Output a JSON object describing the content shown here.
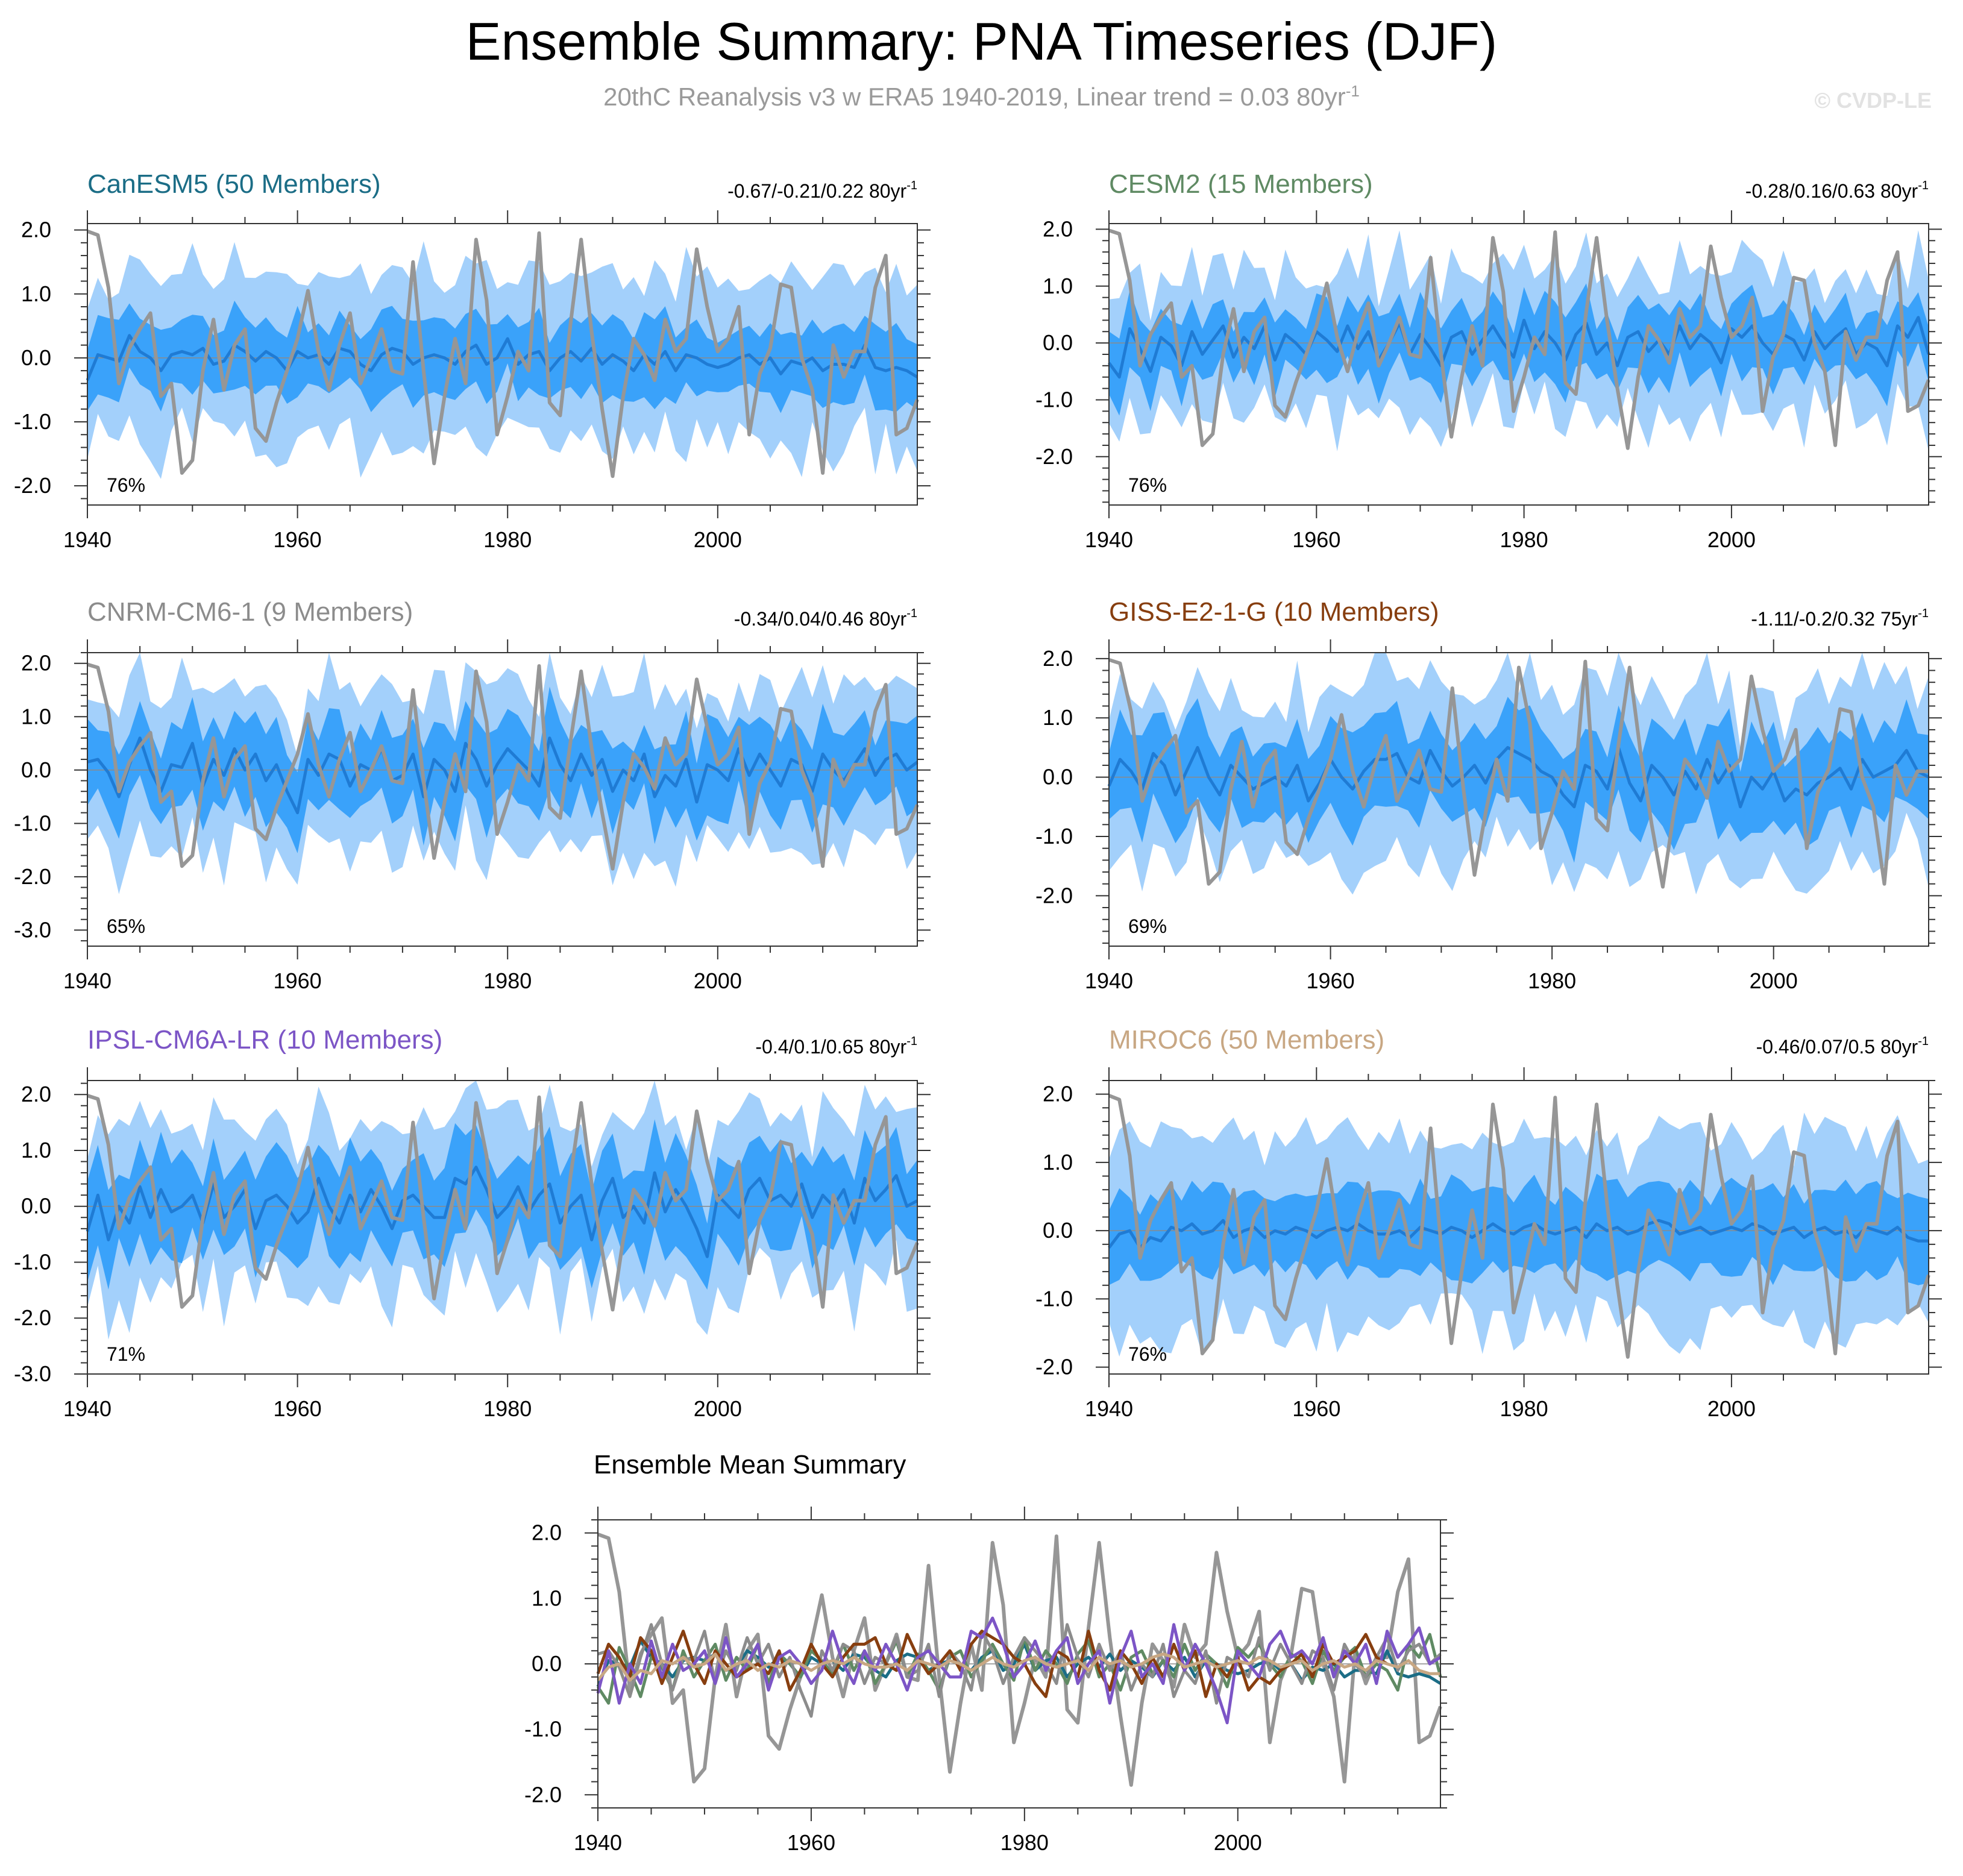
{
  "header": {
    "title": "Ensemble Summary: PNA Timeseries (DJF)",
    "subtitle_main": "20thC Reanalysis v3 w ERA5 1940-2019, Linear trend = 0.03 80yr",
    "subtitle_exp": "-1",
    "watermark": "© CVDP-LE"
  },
  "colors": {
    "band_outer": "#a3d0fb",
    "band_inner": "#3aa2fa",
    "ens_mean": "#1f7bd4",
    "observed": "#969696",
    "zero_line": "#8a8a8a"
  },
  "chart_data": [
    {
      "id": "canesm5",
      "type": "area",
      "title": "CanESM5 (50 Members)",
      "title_color": "#1b6d86",
      "trend_label": "-0.67/-0.21/0.22 80yr",
      "trend_exp": "-1",
      "percent_label": "76%",
      "xlim": [
        1940,
        2019
      ],
      "xticks": [
        1940,
        1960,
        1980,
        2000
      ],
      "ylim": [
        -2.3,
        2.1
      ],
      "yticks": [
        -2.0,
        -1.0,
        0.0,
        1.0,
        2.0
      ],
      "ytick_labels": [
        "-2.0",
        "-1.0",
        "0.0",
        "1.0",
        "2.0"
      ],
      "outer_halfwidth": 1.35,
      "inner_halfwidth": 0.55,
      "seed": 11,
      "ens_mean": [
        -0.35,
        0.05,
        0.0,
        -0.05,
        0.35,
        0.1,
        0.0,
        -0.2,
        0.05,
        0.1,
        0.05,
        0.15,
        -0.1,
        -0.05,
        0.2,
        0.1,
        -0.05,
        0.1,
        0.0,
        -0.2,
        0.1,
        0.0,
        0.05,
        -0.1,
        0.15,
        0.1,
        -0.1,
        -0.2,
        0.05,
        0.15,
        0.1,
        -0.1,
        0.0,
        0.05,
        0.0,
        -0.1,
        0.1,
        0.2,
        -0.1,
        0.0,
        0.3,
        -0.1,
        0.05,
        0.1,
        -0.2,
        0.0,
        0.1,
        -0.05,
        0.15,
        -0.1,
        0.05,
        -0.05,
        -0.2,
        0.05,
        -0.1,
        0.1,
        -0.2,
        0.05,
        0.0,
        -0.1,
        -0.15,
        -0.1,
        0.0,
        0.05,
        -0.1,
        0.0,
        -0.25,
        -0.05,
        -0.1,
        0.0,
        -0.2,
        -0.1,
        -0.1,
        -0.15,
        0.2,
        -0.15,
        -0.2,
        -0.15,
        -0.2,
        -0.3
      ]
    },
    {
      "id": "cesm2",
      "type": "area",
      "title": "CESM2 (15 Members)",
      "title_color": "#5f8a63",
      "trend_label": "-0.28/0.16/0.63 80yr",
      "trend_exp": "-1",
      "percent_label": "76%",
      "xlim": [
        1940,
        2019
      ],
      "xticks": [
        1940,
        1960,
        1980,
        2000
      ],
      "ylim": [
        -2.85,
        2.1
      ],
      "yticks": [
        -2.0,
        -1.0,
        0.0,
        1.0,
        2.0
      ],
      "ytick_labels": [
        "-2.0",
        "-1.0",
        "0.0",
        "1.0",
        "2.0"
      ],
      "outer_halfwidth": 1.25,
      "inner_halfwidth": 0.6,
      "seed": 23,
      "ens_mean": [
        -0.35,
        -0.6,
        0.25,
        -0.1,
        -0.5,
        0.1,
        -0.05,
        -0.4,
        0.2,
        -0.2,
        0.05,
        0.3,
        -0.25,
        0.1,
        -0.1,
        0.3,
        -0.3,
        0.15,
        0.0,
        -0.2,
        0.2,
        0.05,
        -0.15,
        0.3,
        -0.1,
        0.2,
        -0.3,
        0.0,
        0.35,
        -0.2,
        0.15,
        -0.1,
        -0.4,
        0.1,
        0.2,
        -0.2,
        0.05,
        0.3,
        0.0,
        -0.25,
        0.4,
        -0.1,
        0.2,
        0.0,
        -0.3,
        0.15,
        0.35,
        -0.2,
        0.0,
        -0.4,
        0.1,
        0.2,
        -0.15,
        0.05,
        -0.2,
        0.3,
        -0.1,
        0.15,
        0.0,
        -0.35,
        0.25,
        0.1,
        0.3,
        0.0,
        -0.2,
        0.15,
        0.05,
        -0.3,
        0.2,
        -0.1,
        0.1,
        0.25,
        -0.2,
        0.0,
        -0.1,
        -0.4,
        0.3,
        0.1,
        0.45,
        -0.2
      ]
    },
    {
      "id": "cnrm",
      "type": "area",
      "title": "CNRM-CM6-1 (9 Members)",
      "title_color": "#8c8c8c",
      "trend_label": "-0.34/0.04/0.46 80yr",
      "trend_exp": "-1",
      "percent_label": "65%",
      "xlim": [
        1940,
        2019
      ],
      "xticks": [
        1940,
        1960,
        1980,
        2000
      ],
      "ylim": [
        -3.3,
        2.2
      ],
      "yticks": [
        -3.0,
        -2.0,
        -1.0,
        0.0,
        1.0,
        2.0
      ],
      "ytick_labels": [
        "-3.0",
        "-2.0",
        "-1.0",
        "0.0",
        "1.0",
        "2.0"
      ],
      "outer_halfwidth": 1.5,
      "inner_halfwidth": 0.75,
      "seed": 37,
      "ens_mean": [
        0.15,
        0.2,
        -0.05,
        -0.5,
        0.1,
        0.6,
        0.0,
        -0.4,
        0.1,
        0.05,
        0.5,
        -0.3,
        0.2,
        -0.1,
        0.4,
        0.0,
        0.3,
        -0.2,
        0.1,
        -0.4,
        -0.8,
        0.2,
        -0.1,
        0.3,
        0.2,
        -0.3,
        0.1,
        0.0,
        0.4,
        -0.2,
        -0.1,
        0.3,
        -0.5,
        0.2,
        0.0,
        -0.4,
        0.5,
        0.2,
        -0.3,
        0.1,
        0.4,
        0.2,
        0.0,
        -0.3,
        0.6,
        0.1,
        -0.2,
        0.3,
        -0.1,
        0.2,
        -0.4,
        0.0,
        -0.2,
        0.3,
        -0.5,
        -0.1,
        -0.3,
        0.2,
        -0.6,
        0.1,
        0.0,
        -0.2,
        0.4,
        -0.1,
        0.3,
        0.0,
        -0.3,
        0.2,
        0.1,
        -0.4,
        0.3,
        0.0,
        -0.2,
        0.1,
        0.4,
        -0.1,
        0.2,
        0.3,
        0.0,
        0.15
      ]
    },
    {
      "id": "giss",
      "type": "area",
      "title": "GISS-E2-1-G (10 Members)",
      "title_color": "#873e0f",
      "trend_label": "-1.11/-0.2/0.32 75yr",
      "trend_exp": "-1",
      "percent_label": "69%",
      "xlim": [
        1940,
        2014
      ],
      "xticks": [
        1940,
        1960,
        1980,
        2000
      ],
      "ylim": [
        -2.85,
        2.1
      ],
      "yticks": [
        -2.0,
        -1.0,
        0.0,
        1.0,
        2.0
      ],
      "ytick_labels": [
        "-2.0",
        "-1.0",
        "0.0",
        "1.0",
        "2.0"
      ],
      "outer_halfwidth": 1.45,
      "inner_halfwidth": 0.75,
      "seed": 53,
      "ens_mean": [
        -0.15,
        0.3,
        0.1,
        -0.2,
        0.4,
        0.2,
        -0.3,
        0.1,
        0.5,
        0.0,
        -0.3,
        0.2,
        0.0,
        -0.2,
        -0.1,
        0.0,
        -0.15,
        0.2,
        -0.4,
        -0.1,
        0.3,
        0.0,
        -0.2,
        0.1,
        0.3,
        0.3,
        0.4,
        0.0,
        -0.1,
        0.45,
        0.1,
        -0.15,
        0.0,
        0.2,
        -0.1,
        0.3,
        0.5,
        0.4,
        0.3,
        0.1,
        0.0,
        -0.3,
        -0.5,
        0.2,
        0.1,
        -0.2,
        0.5,
        -0.1,
        -0.4,
        0.2,
        0.0,
        -0.3,
        0.1,
        -0.2,
        0.3,
        -0.1,
        0.2,
        -0.5,
        0.0,
        -0.2,
        0.1,
        -0.4,
        -0.2,
        -0.3,
        -0.1,
        0.0,
        0.15,
        -0.2,
        0.3,
        0.0,
        0.1,
        0.2,
        0.45,
        0.1,
        0.0
      ]
    },
    {
      "id": "ipsl",
      "type": "area",
      "title": "IPSL-CM6A-LR (10 Members)",
      "title_color": "#7c55c6",
      "trend_label": "-0.4/0.1/0.65 80yr",
      "trend_exp": "-1",
      "percent_label": "71%",
      "xlim": [
        1940,
        2019
      ],
      "xticks": [
        1940,
        1960,
        1980,
        2000
      ],
      "ylim": [
        -3.0,
        2.25
      ],
      "yticks": [
        -3.0,
        -2.0,
        -1.0,
        0.0,
        1.0,
        2.0
      ],
      "ytick_labels": [
        "-3.0",
        "-2.0",
        "-1.0",
        "0.0",
        "1.0",
        "2.0"
      ],
      "outer_halfwidth": 1.5,
      "inner_halfwidth": 0.8,
      "seed": 71,
      "ens_mean": [
        -0.45,
        0.2,
        -0.6,
        0.0,
        -0.3,
        0.35,
        -0.2,
        0.3,
        -0.1,
        0.0,
        0.2,
        -0.3,
        0.4,
        -0.2,
        0.0,
        0.3,
        -0.4,
        0.1,
        0.2,
        0.0,
        -0.3,
        -0.1,
        0.5,
        0.0,
        -0.3,
        0.2,
        -0.1,
        0.3,
        0.0,
        -0.4,
        0.1,
        0.2,
        0.0,
        -0.2,
        -0.2,
        0.5,
        0.4,
        0.7,
        0.3,
        -0.2,
        0.0,
        0.35,
        -0.1,
        0.2,
        0.4,
        -0.3,
        0.0,
        0.2,
        -0.6,
        0.1,
        0.5,
        -0.2,
        0.0,
        -0.3,
        0.6,
        -0.1,
        0.3,
        0.0,
        -0.4,
        -0.9,
        0.2,
        0.0,
        -0.2,
        0.3,
        0.5,
        0.1,
        0.2,
        0.0,
        0.4,
        -0.2,
        0.2,
        0.0,
        0.3,
        -0.3,
        0.5,
        0.1,
        0.3,
        0.55,
        0.0,
        0.1
      ]
    },
    {
      "id": "miroc6",
      "type": "area",
      "title": "MIROC6 (50 Members)",
      "title_color": "#c8a783",
      "trend_label": "-0.46/0.07/0.5 80yr",
      "trend_exp": "-1",
      "percent_label": "76%",
      "xlim": [
        1940,
        2019
      ],
      "xticks": [
        1940,
        1960,
        1980,
        2000
      ],
      "ylim": [
        -2.1,
        2.2
      ],
      "yticks": [
        -2.0,
        -1.0,
        0.0,
        1.0,
        2.0
      ],
      "ytick_labels": [
        "-2.0",
        "-1.0",
        "0.0",
        "1.0",
        "2.0"
      ],
      "outer_halfwidth": 1.35,
      "inner_halfwidth": 0.6,
      "seed": 89,
      "ens_mean": [
        -0.25,
        -0.05,
        0.0,
        -0.25,
        -0.1,
        -0.15,
        0.05,
        0.0,
        0.1,
        -0.05,
        0.0,
        0.15,
        -0.1,
        0.0,
        0.05,
        -0.1,
        0.0,
        -0.05,
        0.05,
        0.0,
        -0.1,
        0.0,
        0.05,
        0.0,
        0.1,
        0.0,
        -0.05,
        -0.05,
        0.0,
        -0.1,
        0.05,
        0.0,
        -0.05,
        0.05,
        0.0,
        -0.1,
        0.0,
        0.1,
        0.0,
        -0.05,
        0.05,
        0.1,
        0.0,
        -0.05,
        0.0,
        0.05,
        -0.1,
        0.1,
        0.0,
        0.05,
        -0.05,
        0.0,
        0.1,
        0.15,
        0.1,
        -0.05,
        0.0,
        0.05,
        -0.05,
        0.0,
        0.05,
        0.0,
        0.1,
        0.05,
        -0.05,
        0.0,
        0.05,
        -0.1,
        0.0,
        0.05,
        -0.05,
        0.0,
        -0.1,
        0.05,
        0.0,
        -0.05,
        0.05,
        -0.1,
        -0.15,
        -0.15
      ]
    },
    {
      "id": "ensmean",
      "type": "line",
      "title": "Ensemble Mean Summary",
      "title_color": "#000000",
      "xlim": [
        1940,
        2019
      ],
      "xticks": [
        1940,
        1960,
        1980,
        2000
      ],
      "ylim": [
        -2.2,
        2.2
      ],
      "yticks": [
        -2.0,
        -1.0,
        0.0,
        1.0,
        2.0
      ],
      "ytick_labels": [
        "-2.0",
        "-1.0",
        "0.0",
        "1.0",
        "2.0"
      ],
      "series_refs": [
        "observed",
        "canesm5",
        "cesm2",
        "cnrm",
        "giss",
        "ipsl",
        "miroc6"
      ]
    }
  ],
  "observed": {
    "x_start": 1940,
    "values": [
      1.98,
      1.92,
      1.1,
      -0.4,
      0.15,
      0.45,
      0.7,
      -0.6,
      -0.4,
      -1.8,
      -1.6,
      -0.2,
      0.6,
      -0.5,
      0.2,
      0.45,
      -1.1,
      -1.3,
      -0.7,
      -0.2,
      0.3,
      1.05,
      0.1,
      -0.5,
      0.2,
      0.7,
      -0.4,
      0.0,
      0.45,
      -0.2,
      -0.25,
      1.5,
      -0.2,
      -1.65,
      -0.6,
      0.3,
      -0.4,
      1.85,
      0.9,
      -1.2,
      -0.6,
      0.1,
      -0.2,
      1.95,
      -0.7,
      -0.9,
      0.55,
      1.85,
      0.4,
      -0.8,
      -1.85,
      -0.6,
      0.3,
      0.05,
      -0.35,
      0.6,
      0.1,
      0.3,
      1.7,
      0.8,
      0.1,
      0.3,
      0.8,
      -1.2,
      -0.25,
      0.15,
      1.15,
      1.1,
      0.0,
      -0.5,
      -1.8,
      0.2,
      -0.3,
      0.1,
      0.1,
      1.1,
      1.6,
      -1.2,
      -1.1,
      -0.65
    ]
  }
}
